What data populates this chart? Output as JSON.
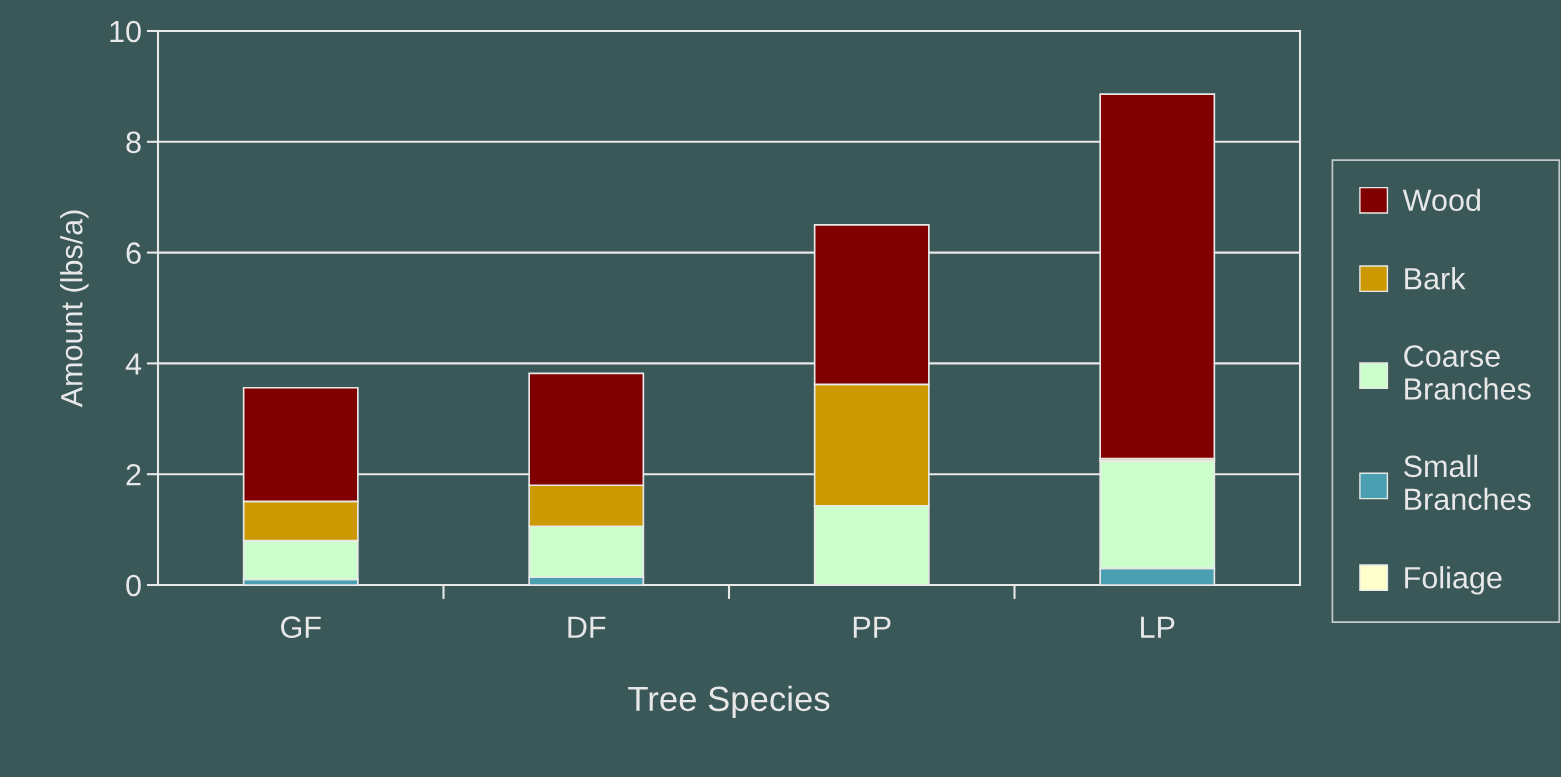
{
  "chart_data": {
    "type": "bar",
    "stacked": true,
    "xlabel": "Tree Species",
    "ylabel": "Amount (lbs/a)",
    "categories": [
      "GF",
      "DF",
      "PP",
      "LP"
    ],
    "series": [
      {
        "name": "Foliage",
        "color": "#ffffcc",
        "values": [
          null,
          null,
          null,
          null
        ]
      },
      {
        "name": "Small\nBranches",
        "color": "#4a9fb0",
        "values": [
          0.1,
          0.14,
          null,
          0.3
        ]
      },
      {
        "name": "Coarse\nBranches",
        "color": "#ccffcc",
        "values": [
          0.7,
          0.92,
          1.43,
          1.94
        ]
      },
      {
        "name": "Bark",
        "color": "#cc9900",
        "values": [
          0.71,
          0.74,
          2.19,
          0.04
        ]
      },
      {
        "name": "Wood",
        "color": "#800000",
        "values": [
          2.05,
          2.02,
          2.88,
          6.58
        ]
      }
    ],
    "ylim": [
      0,
      10
    ],
    "yticks": [
      0,
      2,
      4,
      6,
      8,
      10
    ],
    "grid": "y",
    "legend": "right"
  }
}
